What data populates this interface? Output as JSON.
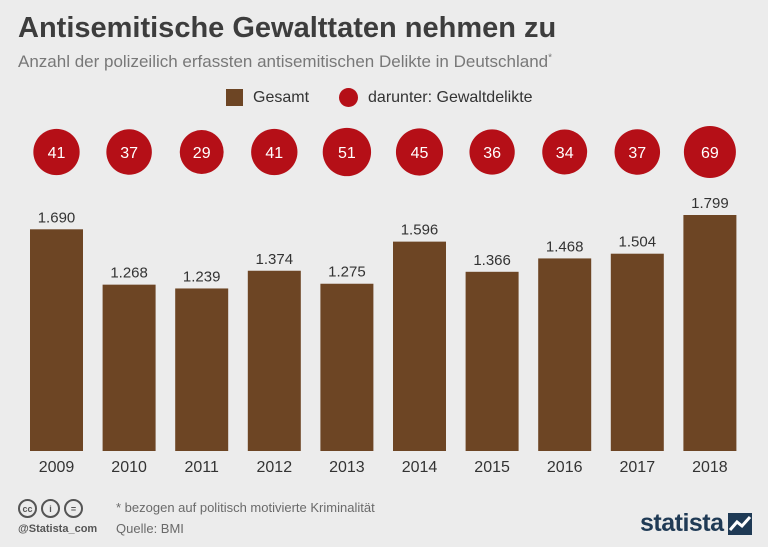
{
  "title": "Antisemitische Gewalttaten nehmen zu",
  "subtitle": "Anzahl der polizeilich erfassten antisemitischen Delikte in Deutschland",
  "subtitle_mark": "*",
  "legend": {
    "total_label": "Gesamt",
    "violent_label": "darunter: Gewaltdelikte"
  },
  "colors": {
    "bar": "#6d4524",
    "circle": "#b50f17",
    "background": "#ececec"
  },
  "chart_data": {
    "type": "bar",
    "title": "Antisemitische Gewalttaten nehmen zu",
    "categories": [
      "2009",
      "2010",
      "2011",
      "2012",
      "2013",
      "2014",
      "2015",
      "2016",
      "2017",
      "2018"
    ],
    "series": [
      {
        "name": "Gesamt",
        "values": [
          1690,
          1268,
          1239,
          1374,
          1275,
          1596,
          1366,
          1468,
          1504,
          1799
        ],
        "labels": [
          "1.690",
          "1.268",
          "1.239",
          "1.374",
          "1.275",
          "1.596",
          "1.366",
          "1.468",
          "1.504",
          "1.799"
        ]
      },
      {
        "name": "darunter: Gewaltdelikte",
        "values": [
          41,
          37,
          29,
          41,
          51,
          45,
          36,
          34,
          37,
          69
        ],
        "labels": [
          "41",
          "37",
          "29",
          "41",
          "51",
          "45",
          "36",
          "34",
          "37",
          "69"
        ]
      }
    ],
    "xlabel": "",
    "ylabel": "",
    "ylim": [
      0,
      1900
    ]
  },
  "footer": {
    "note": "* bezogen auf politisch motivierte Kriminalität",
    "source": "Quelle: BMI",
    "handle": "@Statista_com",
    "brand": "statista"
  }
}
